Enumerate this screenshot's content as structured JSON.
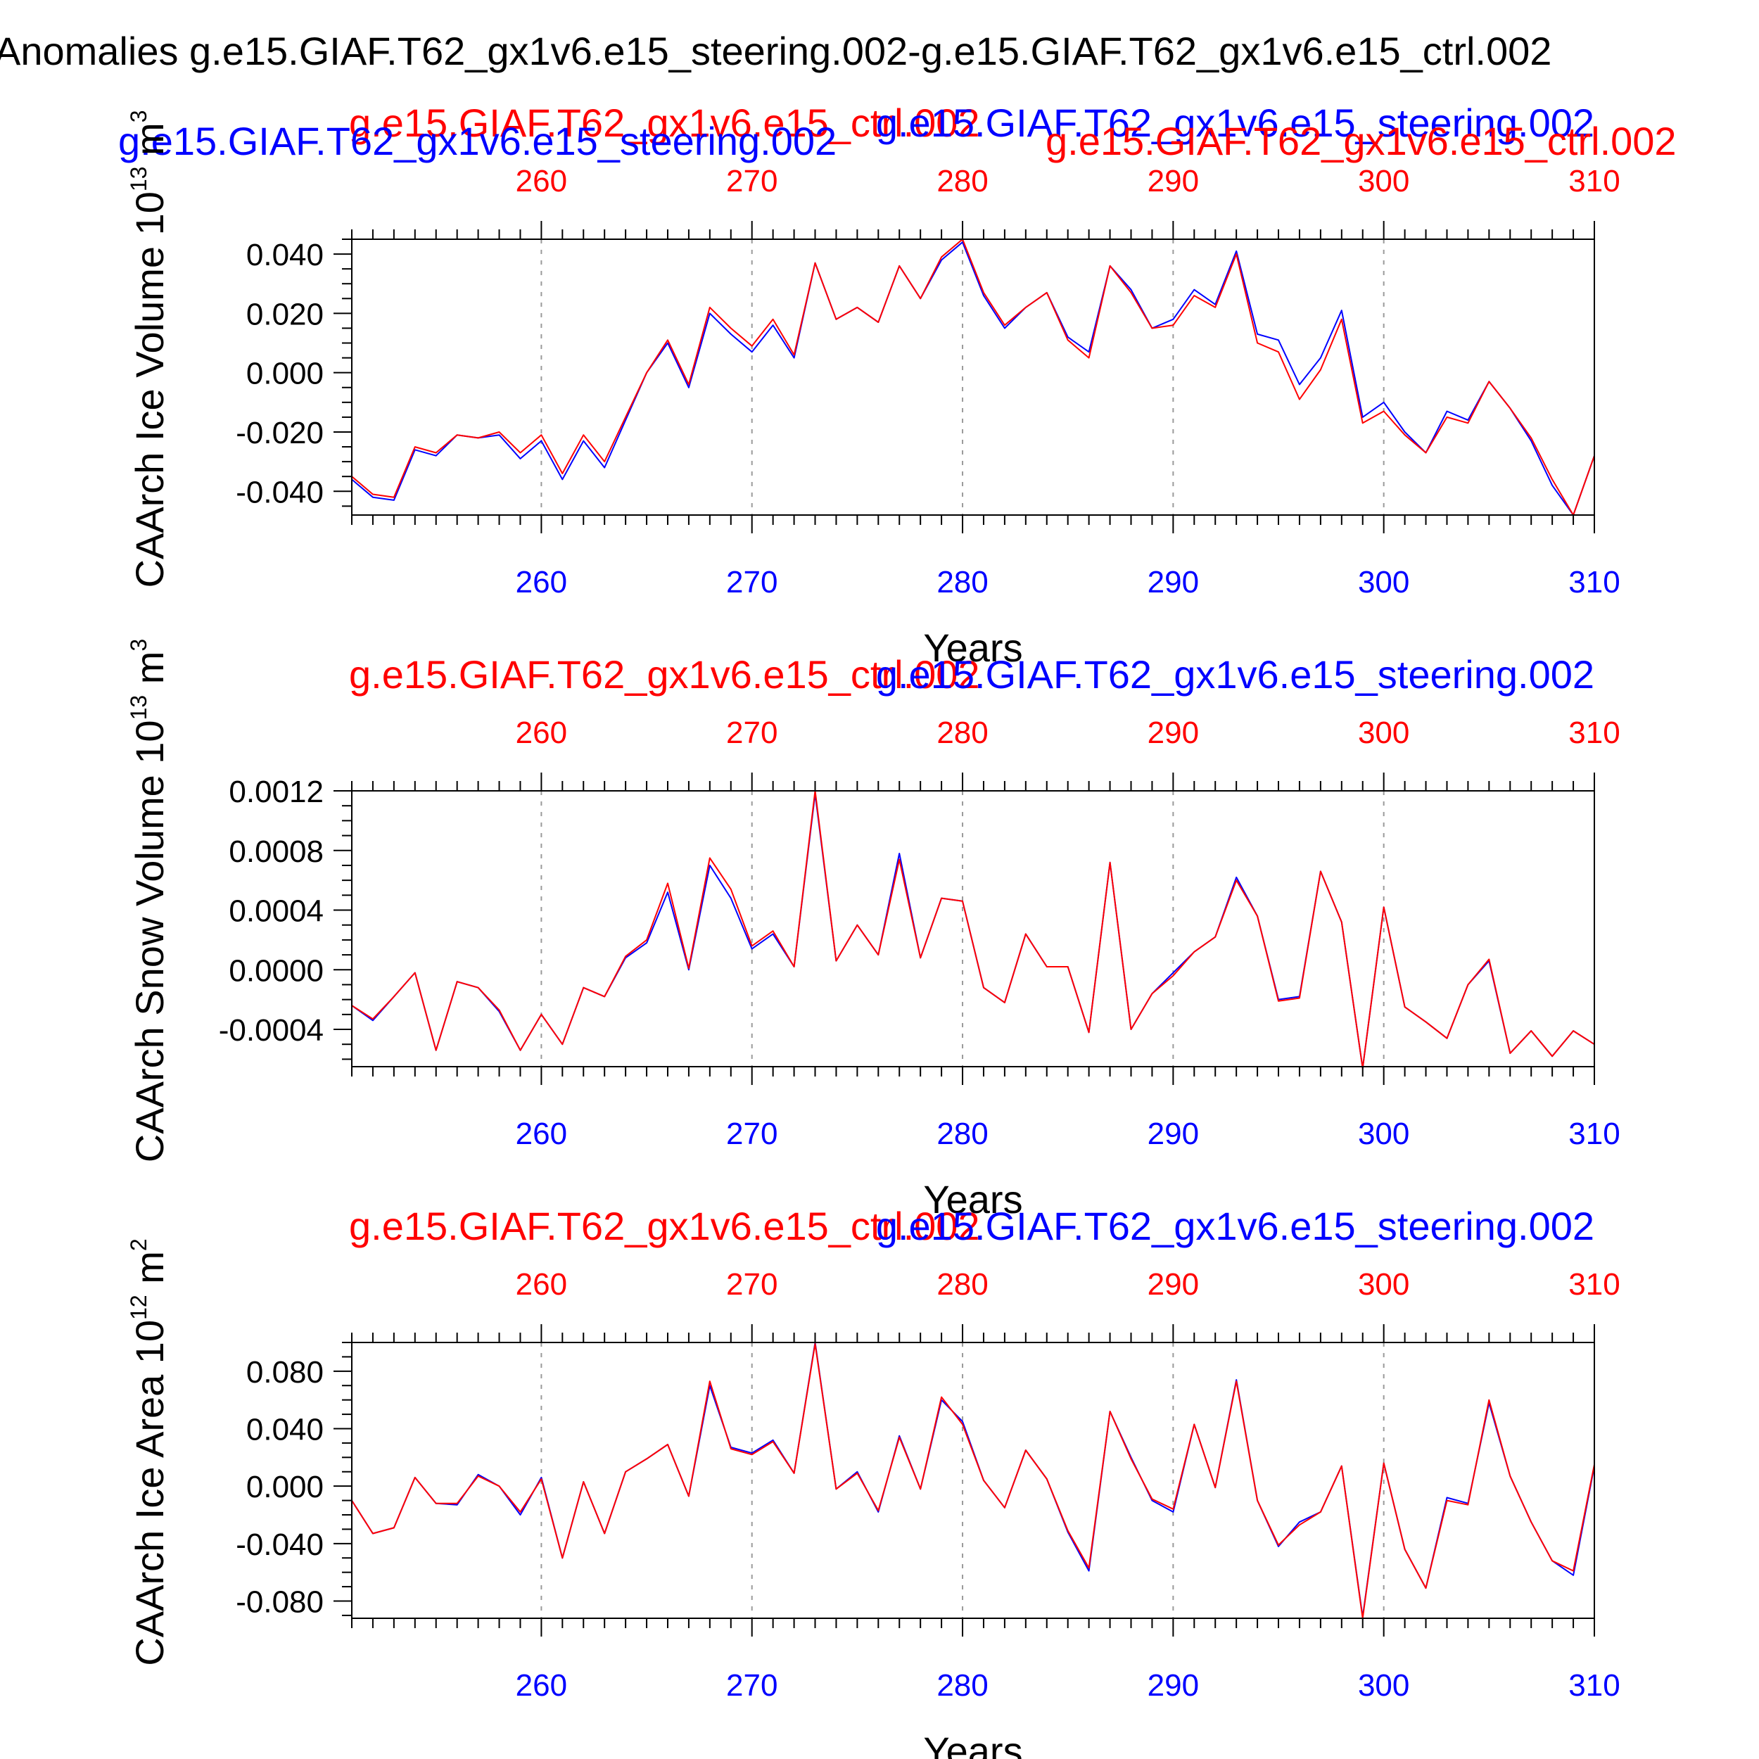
{
  "figure": {
    "title": "Anomalies g.e15.GIAF.T62_gx1v6.e15_steering.002-g.e15.GIAF.T62_gx1v6.e15_ctrl.002"
  },
  "colors": {
    "steering": "#0000ff",
    "ctrl": "#ff0000",
    "axis": "#000000",
    "grid": "#9a9a9a"
  },
  "chart_data": [
    {
      "type": "line",
      "name": "ice-volume",
      "title": "",
      "ylabel": "CAArch Ice Volume 10",
      "ylabel_exp": "13",
      "ylabel_unit": " m",
      "ylabel_unit_exp": "3",
      "xlabel": "Years",
      "xlim": [
        251,
        310
      ],
      "ylim": [
        -0.048,
        0.045
      ],
      "yticks": [
        0.04,
        0.02,
        0.0,
        -0.02,
        -0.04
      ],
      "ytick_labels": [
        "0.040",
        "0.020",
        "0.000",
        "-0.020",
        "-0.040"
      ],
      "xticks": [
        260,
        270,
        280,
        290,
        300,
        310
      ],
      "xtick_labels": [
        "260",
        "270",
        "280",
        "290",
        "300",
        "310"
      ],
      "run_labels": {
        "steering": "g.e15.GIAF.T62_gx1v6.e15_steering.002",
        "ctrl": "g.e15.GIAF.T62_gx1v6.e15_ctrl.002"
      },
      "x_start": 251,
      "series": [
        {
          "name": "g.e15.GIAF.T62_gx1v6.e15_steering.002",
          "color": "#0000ff",
          "values": [
            -0.036,
            -0.042,
            -0.043,
            -0.026,
            -0.028,
            -0.021,
            -0.022,
            -0.021,
            -0.029,
            -0.023,
            -0.036,
            -0.023,
            -0.032,
            -0.016,
            0.0,
            0.01,
            -0.005,
            0.02,
            0.013,
            0.007,
            0.016,
            0.005,
            0.037,
            0.018,
            0.022,
            0.017,
            0.036,
            0.025,
            0.038,
            0.044,
            0.026,
            0.015,
            0.022,
            0.027,
            0.012,
            0.007,
            0.036,
            0.028,
            0.015,
            0.018,
            0.028,
            0.023,
            0.041,
            0.013,
            0.011,
            -0.004,
            0.005,
            0.021,
            -0.015,
            -0.01,
            -0.02,
            -0.027,
            -0.013,
            -0.016,
            -0.003,
            -0.012,
            -0.023,
            -0.038,
            -0.048,
            -0.028
          ]
        },
        {
          "name": "g.e15.GIAF.T62_gx1v6.e15_ctrl.002",
          "color": "#ff0000",
          "values": [
            -0.035,
            -0.041,
            -0.042,
            -0.025,
            -0.027,
            -0.021,
            -0.022,
            -0.02,
            -0.027,
            -0.021,
            -0.034,
            -0.021,
            -0.03,
            -0.015,
            0.0,
            0.011,
            -0.004,
            0.022,
            0.015,
            0.009,
            0.018,
            0.006,
            0.037,
            0.018,
            0.022,
            0.017,
            0.036,
            0.025,
            0.039,
            0.045,
            0.027,
            0.016,
            0.022,
            0.027,
            0.011,
            0.005,
            0.036,
            0.027,
            0.015,
            0.016,
            0.026,
            0.022,
            0.04,
            0.01,
            0.007,
            -0.009,
            0.001,
            0.018,
            -0.017,
            -0.013,
            -0.021,
            -0.027,
            -0.015,
            -0.017,
            -0.003,
            -0.012,
            -0.022,
            -0.036,
            -0.048,
            -0.028
          ]
        }
      ]
    },
    {
      "type": "line",
      "name": "snow-volume",
      "title": "",
      "ylabel": "CAArch Snow Volume 10",
      "ylabel_exp": "13",
      "ylabel_unit": " m",
      "ylabel_unit_exp": "3",
      "xlabel": "Years",
      "xlim": [
        251,
        310
      ],
      "ylim": [
        -0.00065,
        0.0012
      ],
      "yticks": [
        0.0012,
        0.0008,
        0.0004,
        0.0,
        -0.0004
      ],
      "ytick_labels": [
        "0.0012",
        "0.0008",
        "0.0004",
        "0.0000",
        "-0.0004"
      ],
      "xticks": [
        260,
        270,
        280,
        290,
        300,
        310
      ],
      "xtick_labels": [
        "260",
        "270",
        "280",
        "290",
        "300",
        "310"
      ],
      "run_labels": {
        "steering": "g.e15.GIAF.T62_gx1v6.e15_steering.002",
        "ctrl": "g.e15.GIAF.T62_gx1v6.e15_ctrl.002"
      },
      "x_start": 251,
      "series": [
        {
          "name": "g.e15.GIAF.T62_gx1v6.e15_steering.002",
          "color": "#0000ff",
          "values": [
            -0.00024,
            -0.00034,
            -0.00018,
            -2e-05,
            -0.00054,
            -8e-05,
            -0.00012,
            -0.00028,
            -0.00054,
            -0.0003,
            -0.0005,
            -0.00012,
            -0.00018,
            8e-05,
            0.00018,
            0.00052,
            0.0,
            0.0007,
            0.00048,
            0.00014,
            0.00024,
            2e-05,
            0.00118,
            6e-05,
            0.0003,
            0.0001,
            0.00078,
            8e-05,
            0.00048,
            0.00046,
            -0.00012,
            -0.00022,
            0.00024,
            2e-05,
            2e-05,
            -0.00042,
            0.00072,
            -0.0004,
            -0.00016,
            -2e-05,
            0.00012,
            0.00022,
            0.00062,
            0.00036,
            -0.0002,
            -0.00018,
            0.00066,
            0.00032,
            -0.00066,
            0.00042,
            -0.00025,
            -0.00035,
            -0.00046,
            -0.0001,
            6e-05,
            -0.00056,
            -0.00041,
            -0.00058,
            -0.00041,
            -0.0005
          ]
        },
        {
          "name": "g.e15.GIAF.T62_gx1v6.e15_ctrl.002",
          "color": "#ff0000",
          "values": [
            -0.00024,
            -0.00033,
            -0.00018,
            -2e-05,
            -0.00054,
            -8e-05,
            -0.00012,
            -0.00027,
            -0.00054,
            -0.0003,
            -0.0005,
            -0.00012,
            -0.00018,
            9e-05,
            0.0002,
            0.00058,
            1e-05,
            0.00075,
            0.00054,
            0.00016,
            0.00026,
            2e-05,
            0.0012,
            6e-05,
            0.0003,
            0.0001,
            0.00074,
            8e-05,
            0.00048,
            0.00046,
            -0.00012,
            -0.00022,
            0.00024,
            2e-05,
            2e-05,
            -0.00042,
            0.00072,
            -0.0004,
            -0.00016,
            -4e-05,
            0.00012,
            0.00022,
            0.0006,
            0.00036,
            -0.00021,
            -0.00019,
            0.00066,
            0.00032,
            -0.00066,
            0.00042,
            -0.00025,
            -0.00035,
            -0.00046,
            -0.0001,
            7e-05,
            -0.00056,
            -0.00041,
            -0.00058,
            -0.00041,
            -0.0005
          ]
        }
      ]
    },
    {
      "type": "line",
      "name": "ice-area",
      "title": "",
      "ylabel": "CAArch Ice Area 10",
      "ylabel_exp": "12",
      "ylabel_unit": " m",
      "ylabel_unit_exp": "2",
      "xlabel": "Years",
      "xlim": [
        251,
        310
      ],
      "ylim": [
        -0.092,
        0.1
      ],
      "yticks": [
        0.08,
        0.04,
        0.0,
        -0.04,
        -0.08
      ],
      "ytick_labels": [
        "0.080",
        "0.040",
        "0.000",
        "-0.040",
        "-0.080"
      ],
      "xticks": [
        260,
        270,
        280,
        290,
        300,
        310
      ],
      "xtick_labels": [
        "260",
        "270",
        "280",
        "290",
        "300",
        "310"
      ],
      "run_labels": {
        "steering": "g.e15.GIAF.T62_gx1v6.e15_steering.002",
        "ctrl": "g.e15.GIAF.T62_gx1v6.e15_ctrl.002"
      },
      "x_start": 251,
      "series": [
        {
          "name": "g.e15.GIAF.T62_gx1v6.e15_steering.002",
          "color": "#0000ff",
          "values": [
            -0.01,
            -0.033,
            -0.029,
            0.006,
            -0.012,
            -0.013,
            0.008,
            0.0,
            -0.02,
            0.006,
            -0.05,
            0.003,
            -0.033,
            0.01,
            0.019,
            0.029,
            -0.007,
            0.07,
            0.027,
            0.023,
            0.032,
            0.009,
            0.1,
            -0.002,
            0.01,
            -0.018,
            0.035,
            -0.002,
            0.06,
            0.045,
            0.004,
            -0.015,
            0.025,
            0.005,
            -0.032,
            -0.059,
            0.052,
            0.02,
            -0.01,
            -0.018,
            0.043,
            -0.001,
            0.074,
            -0.01,
            -0.042,
            -0.025,
            -0.018,
            0.014,
            -0.091,
            0.016,
            -0.044,
            -0.071,
            -0.008,
            -0.012,
            0.058,
            0.007,
            -0.025,
            -0.052,
            -0.062,
            0.014
          ]
        },
        {
          "name": "g.e15.GIAF.T62_gx1v6.e15_ctrl.002",
          "color": "#ff0000",
          "values": [
            -0.01,
            -0.033,
            -0.029,
            0.006,
            -0.012,
            -0.012,
            0.007,
            0.0,
            -0.018,
            0.005,
            -0.05,
            0.003,
            -0.033,
            0.01,
            0.019,
            0.029,
            -0.007,
            0.073,
            0.026,
            0.022,
            0.031,
            0.009,
            0.099,
            -0.002,
            0.009,
            -0.017,
            0.034,
            -0.002,
            0.062,
            0.043,
            0.004,
            -0.015,
            0.025,
            0.005,
            -0.031,
            -0.057,
            0.052,
            0.019,
            -0.009,
            -0.016,
            0.043,
            -0.001,
            0.073,
            -0.01,
            -0.041,
            -0.027,
            -0.018,
            0.014,
            -0.092,
            0.016,
            -0.044,
            -0.071,
            -0.01,
            -0.013,
            0.06,
            0.007,
            -0.025,
            -0.052,
            -0.059,
            0.015
          ]
        }
      ]
    }
  ]
}
